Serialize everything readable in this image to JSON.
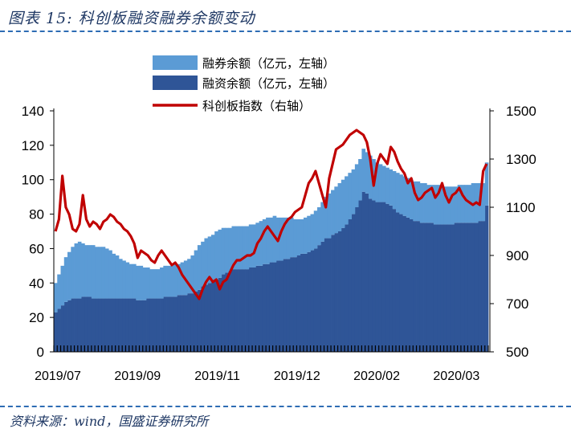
{
  "figure": {
    "title": "图表 15: 科创板融资融券余额变动",
    "source": "资料来源：wind，国盛证券研究所"
  },
  "colors": {
    "short_balance": "#5b9bd5",
    "margin_balance": "#2f5597",
    "index_line": "#c00000",
    "title": "#1f3864",
    "rule": "#2e6db4"
  },
  "chart_data": {
    "type": "area",
    "title": "",
    "legend": [
      "融券余额（亿元，左轴）",
      "融资余额（亿元，左轴）",
      "科创板指数（右轴）"
    ],
    "legend_placement": "top-center",
    "x_tick_labels": [
      "2019/07",
      "2019/09",
      "2019/11",
      "2019/12",
      "2020/02",
      "2020/03"
    ],
    "left_axis": {
      "ticks": [
        0,
        20,
        40,
        60,
        80,
        100,
        120,
        140
      ],
      "ylim": [
        0,
        140
      ],
      "unit": "亿元"
    },
    "right_axis": {
      "ticks": [
        500,
        700,
        900,
        1100,
        1300,
        1500
      ],
      "ylim": [
        500,
        1500
      ]
    },
    "series": [
      {
        "name": "融资余额（亿元，左轴）",
        "kind": "stacked_bar_bottom",
        "values": [
          23,
          25,
          27,
          29,
          30,
          31,
          31,
          31,
          32,
          32,
          32,
          31,
          31,
          31,
          31,
          31,
          31,
          31,
          31,
          31,
          31,
          31,
          31,
          31,
          30,
          30,
          30,
          31,
          31,
          31,
          31,
          31,
          32,
          32,
          32,
          32,
          33,
          33,
          33,
          34,
          34,
          35,
          36,
          38,
          39,
          40,
          41,
          42,
          43,
          45,
          46,
          47,
          48,
          48,
          48,
          48,
          48,
          49,
          49,
          50,
          50,
          51,
          51,
          52,
          52,
          53,
          53,
          54,
          54,
          55,
          55,
          56,
          57,
          57,
          58,
          59,
          60,
          62,
          64,
          66,
          66,
          68,
          69,
          70,
          72,
          74,
          77,
          80,
          84,
          88,
          93,
          92,
          89,
          88,
          87,
          87,
          87,
          86,
          85,
          83,
          81,
          80,
          79,
          78,
          77,
          76,
          76,
          75,
          75,
          75,
          75,
          74,
          74,
          74,
          74,
          74,
          74,
          75,
          75,
          75,
          75,
          75,
          75,
          75,
          76,
          76,
          85
        ]
      },
      {
        "name": "融券余额（亿元，左轴）",
        "kind": "stacked_bar_total",
        "values": [
          40,
          45,
          50,
          55,
          58,
          61,
          63,
          64,
          63,
          62,
          62,
          62,
          61,
          61,
          61,
          60,
          59,
          57,
          56,
          54,
          53,
          52,
          51,
          51,
          50,
          50,
          49,
          49,
          48,
          48,
          48,
          49,
          50,
          50,
          50,
          51,
          51,
          52,
          53,
          54,
          56,
          59,
          62,
          64,
          66,
          67,
          68,
          70,
          71,
          72,
          72,
          72,
          73,
          73,
          73,
          73,
          73,
          74,
          74,
          75,
          76,
          77,
          78,
          78,
          79,
          78,
          78,
          78,
          78,
          78,
          77,
          77,
          77,
          78,
          79,
          80,
          82,
          84,
          87,
          90,
          92,
          94,
          96,
          98,
          100,
          102,
          104,
          106,
          109,
          112,
          118,
          116,
          114,
          112,
          110,
          109,
          108,
          107,
          106,
          105,
          104,
          103,
          102,
          101,
          100,
          99,
          99,
          98,
          98,
          97,
          97,
          97,
          97,
          96,
          96,
          96,
          96,
          96,
          97,
          97,
          97,
          97,
          98,
          98,
          98,
          98,
          110
        ]
      },
      {
        "name": "科创板指数（右轴）",
        "kind": "line_right_axis",
        "values": [
          1000,
          1050,
          1230,
          1100,
          1070,
          1010,
          1000,
          1030,
          1150,
          1050,
          1020,
          1040,
          1030,
          1010,
          1040,
          1050,
          1070,
          1060,
          1040,
          1030,
          1010,
          1000,
          980,
          950,
          890,
          920,
          910,
          900,
          880,
          870,
          900,
          920,
          900,
          880,
          860,
          870,
          850,
          820,
          800,
          780,
          760,
          740,
          720,
          760,
          790,
          810,
          790,
          800,
          760,
          790,
          800,
          830,
          860,
          880,
          880,
          890,
          900,
          900,
          910,
          950,
          970,
          1000,
          1020,
          1000,
          980,
          960,
          1000,
          1030,
          1050,
          1060,
          1080,
          1090,
          1100,
          1150,
          1200,
          1220,
          1250,
          1200,
          1150,
          1100,
          1220,
          1280,
          1340,
          1350,
          1360,
          1380,
          1400,
          1410,
          1420,
          1410,
          1400,
          1370,
          1300,
          1190,
          1280,
          1320,
          1300,
          1280,
          1350,
          1330,
          1290,
          1260,
          1240,
          1200,
          1220,
          1160,
          1130,
          1140,
          1160,
          1170,
          1180,
          1140,
          1160,
          1200,
          1150,
          1120,
          1150,
          1160,
          1180,
          1150,
          1130,
          1120,
          1110,
          1120,
          1110,
          1250,
          1280
        ]
      }
    ]
  }
}
